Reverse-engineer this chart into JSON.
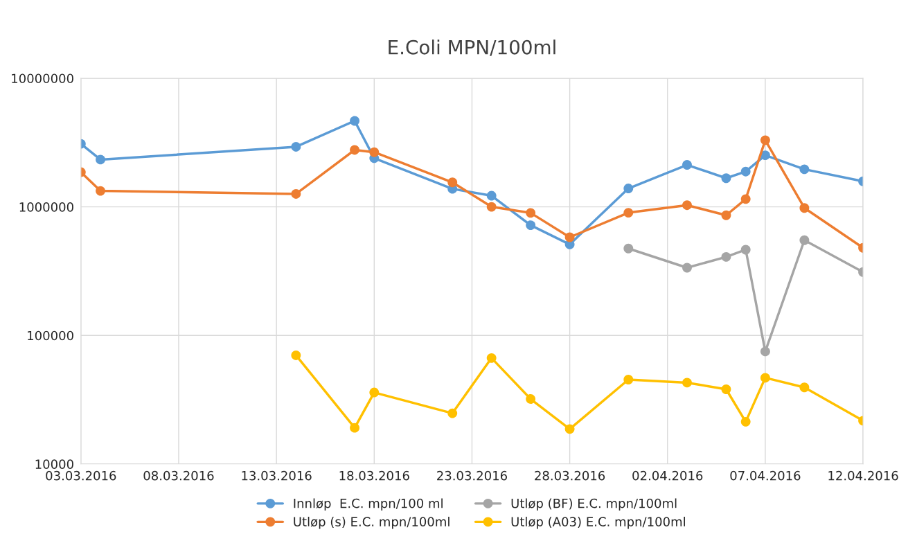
{
  "chart_data": {
    "type": "line",
    "title": "E.Coli MPN/100ml",
    "log": true,
    "grid": true,
    "legend": "bottom",
    "marker": "circle",
    "line_style": "solid",
    "xlim": [
      "2016-03-03",
      "2016-04-12"
    ],
    "xticks": [
      {
        "value": "2016-03-03",
        "label": "03.03.2016"
      },
      {
        "value": "2016-03-08",
        "label": "08.03.2016"
      },
      {
        "value": "2016-03-13",
        "label": "13.03.2016"
      },
      {
        "value": "2016-03-18",
        "label": "18.03.2016"
      },
      {
        "value": "2016-03-23",
        "label": "23.03.2016"
      },
      {
        "value": "2016-03-28",
        "label": "28.03.2016"
      },
      {
        "value": "2016-04-02",
        "label": "02.04.2016"
      },
      {
        "value": "2016-04-07",
        "label": "07.04.2016"
      },
      {
        "value": "2016-04-12",
        "label": "12.04.2016"
      }
    ],
    "ylim": [
      10000,
      10000000
    ],
    "yticks": [
      10000,
      100000,
      1000000,
      10000000
    ],
    "series": [
      {
        "name": "Innløp  E.C. mpn/100 ml",
        "color": "#5b9bd5",
        "x": [
          "2016-03-03",
          "2016-03-04",
          "2016-03-14",
          "2016-03-17",
          "2016-03-18",
          "2016-03-22",
          "2016-03-24",
          "2016-03-26",
          "2016-03-28",
          "2016-03-31",
          "2016-04-03",
          "2016-04-05",
          "2016-04-06",
          "2016-04-07",
          "2016-04-09",
          "2016-04-12"
        ],
        "values": [
          3090000,
          2330000,
          2930000,
          4660000,
          2390000,
          1380000,
          1220000,
          720000,
          510000,
          1390000,
          2120000,
          1670000,
          1880000,
          2520000,
          1960000,
          1580000
        ]
      },
      {
        "name": "Utløp (s) E.C. mpn/100ml",
        "color": "#ed7d31",
        "x": [
          "2016-03-03",
          "2016-03-04",
          "2016-03-14",
          "2016-03-17",
          "2016-03-18",
          "2016-03-22",
          "2016-03-24",
          "2016-03-26",
          "2016-03-28",
          "2016-03-31",
          "2016-04-03",
          "2016-04-05",
          "2016-04-06",
          "2016-04-07",
          "2016-04-09",
          "2016-04-12"
        ],
        "values": [
          1860000,
          1330000,
          1260000,
          2770000,
          2660000,
          1550000,
          1000000,
          897000,
          580000,
          900000,
          1030000,
          860000,
          1150000,
          3300000,
          980000,
          480000
        ]
      },
      {
        "name": "Utløp (BF) E.C. mpn/100ml",
        "color": "#a5a5a5",
        "x": [
          "2016-03-31",
          "2016-04-03",
          "2016-04-05",
          "2016-04-06",
          "2016-04-07",
          "2016-04-09",
          "2016-04-12"
        ],
        "values": [
          474000,
          336000,
          408000,
          464000,
          75000,
          550000,
          311000
        ]
      },
      {
        "name": "Utløp (A03) E.C. mpn/100ml",
        "color": "#ffc000",
        "x": [
          "2016-03-14",
          "2016-03-17",
          "2016-03-18",
          "2016-03-22",
          "2016-03-24",
          "2016-03-26",
          "2016-03-28",
          "2016-03-31",
          "2016-04-03",
          "2016-04-05",
          "2016-04-06",
          "2016-04-07",
          "2016-04-09",
          "2016-04-12"
        ],
        "values": [
          70000,
          19100,
          36000,
          24800,
          66700,
          32000,
          18700,
          45300,
          42900,
          38100,
          21300,
          46800,
          39400,
          21700
        ]
      }
    ]
  }
}
